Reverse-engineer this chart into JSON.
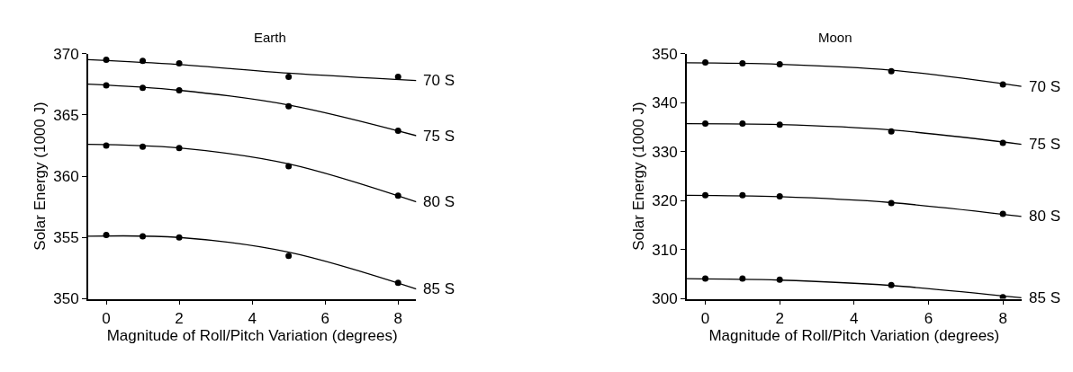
{
  "chart_data": [
    {
      "type": "line",
      "title": "Earth",
      "xlabel": "Magnitude of Roll/Pitch Variation (degrees)",
      "ylabel": "Solar Energy (1000 J)",
      "xlim": [
        -0.5,
        8.5
      ],
      "xticks": [
        0,
        2,
        4,
        6,
        8
      ],
      "ylim": [
        350,
        370
      ],
      "yticks": [
        350,
        355,
        360,
        365,
        370
      ],
      "series": [
        {
          "type": "scatter",
          "color": "#000000",
          "marker": "circle",
          "x": [
            0,
            1,
            2,
            5,
            8
          ],
          "values": [
            369.5,
            369.4,
            369.2,
            368.1,
            368.1
          ]
        },
        {
          "name": "70 S",
          "color": "#000000",
          "marker": "none",
          "x": [
            -0.5,
            2,
            5,
            8.5
          ],
          "values": [
            369.5,
            369.1,
            368.4,
            367.8
          ]
        },
        {
          "type": "scatter",
          "color": "#000000",
          "marker": "circle",
          "x": [
            0,
            1,
            2,
            5,
            8
          ],
          "values": [
            367.4,
            367.2,
            367.0,
            365.7,
            363.7
          ]
        },
        {
          "name": "75 S",
          "color": "#000000",
          "marker": "none",
          "x": [
            -0.5,
            2,
            5,
            8.5
          ],
          "values": [
            367.5,
            367.0,
            365.8,
            363.3
          ]
        },
        {
          "type": "scatter",
          "color": "#000000",
          "marker": "circle",
          "x": [
            0,
            1,
            2,
            5,
            8
          ],
          "values": [
            362.5,
            362.4,
            362.3,
            360.8,
            358.4
          ]
        },
        {
          "name": "80 S",
          "color": "#000000",
          "marker": "none",
          "x": [
            -0.5,
            2,
            5,
            8.5
          ],
          "values": [
            362.6,
            362.3,
            361.0,
            357.9
          ]
        },
        {
          "type": "scatter",
          "color": "#000000",
          "marker": "circle",
          "x": [
            0,
            1,
            2,
            5,
            8
          ],
          "values": [
            355.2,
            355.1,
            355.0,
            353.5,
            351.3
          ]
        },
        {
          "name": "85 S",
          "color": "#000000",
          "marker": "none",
          "x": [
            -0.5,
            2,
            5,
            8.5
          ],
          "values": [
            355.1,
            355.0,
            353.8,
            350.8
          ]
        }
      ]
    },
    {
      "type": "line",
      "title": "Moon",
      "xlabel": "Magnitude of Roll/Pitch Variation (degrees)",
      "ylabel": "Solar Energy (1000 J)",
      "xlim": [
        -0.5,
        8.5
      ],
      "xticks": [
        0,
        2,
        4,
        6,
        8
      ],
      "ylim": [
        300,
        350
      ],
      "yticks": [
        300,
        310,
        320,
        330,
        340,
        350
      ],
      "series": [
        {
          "type": "scatter",
          "color": "#000000",
          "marker": "circle",
          "x": [
            0,
            1,
            2,
            5,
            8
          ],
          "values": [
            348.2,
            348.0,
            347.8,
            346.4,
            343.7
          ]
        },
        {
          "name": "70 S",
          "color": "#000000",
          "marker": "none",
          "x": [
            -0.5,
            2,
            5,
            8.5
          ],
          "values": [
            348.1,
            347.8,
            346.6,
            343.3
          ]
        },
        {
          "type": "scatter",
          "color": "#000000",
          "marker": "circle",
          "x": [
            0,
            1,
            2,
            5,
            8
          ],
          "values": [
            335.7,
            335.7,
            335.5,
            334.1,
            331.8
          ]
        },
        {
          "name": "75 S",
          "color": "#000000",
          "marker": "none",
          "x": [
            -0.5,
            2,
            5,
            8.5
          ],
          "values": [
            335.7,
            335.5,
            334.4,
            331.5
          ]
        },
        {
          "type": "scatter",
          "color": "#000000",
          "marker": "circle",
          "x": [
            0,
            1,
            2,
            5,
            8
          ],
          "values": [
            321.1,
            321.1,
            320.9,
            319.5,
            317.3
          ]
        },
        {
          "name": "80 S",
          "color": "#000000",
          "marker": "none",
          "x": [
            -0.5,
            2,
            5,
            8.5
          ],
          "values": [
            321.1,
            320.8,
            319.6,
            316.8
          ]
        },
        {
          "type": "scatter",
          "color": "#000000",
          "marker": "circle",
          "x": [
            0,
            1,
            2,
            5,
            8
          ],
          "values": [
            304.1,
            304.1,
            303.9,
            302.8,
            300.3
          ]
        },
        {
          "name": "85 S",
          "color": "#000000",
          "marker": "none",
          "x": [
            -0.5,
            2,
            5,
            8.5
          ],
          "values": [
            304.1,
            303.8,
            302.7,
            300.2
          ]
        }
      ]
    }
  ]
}
